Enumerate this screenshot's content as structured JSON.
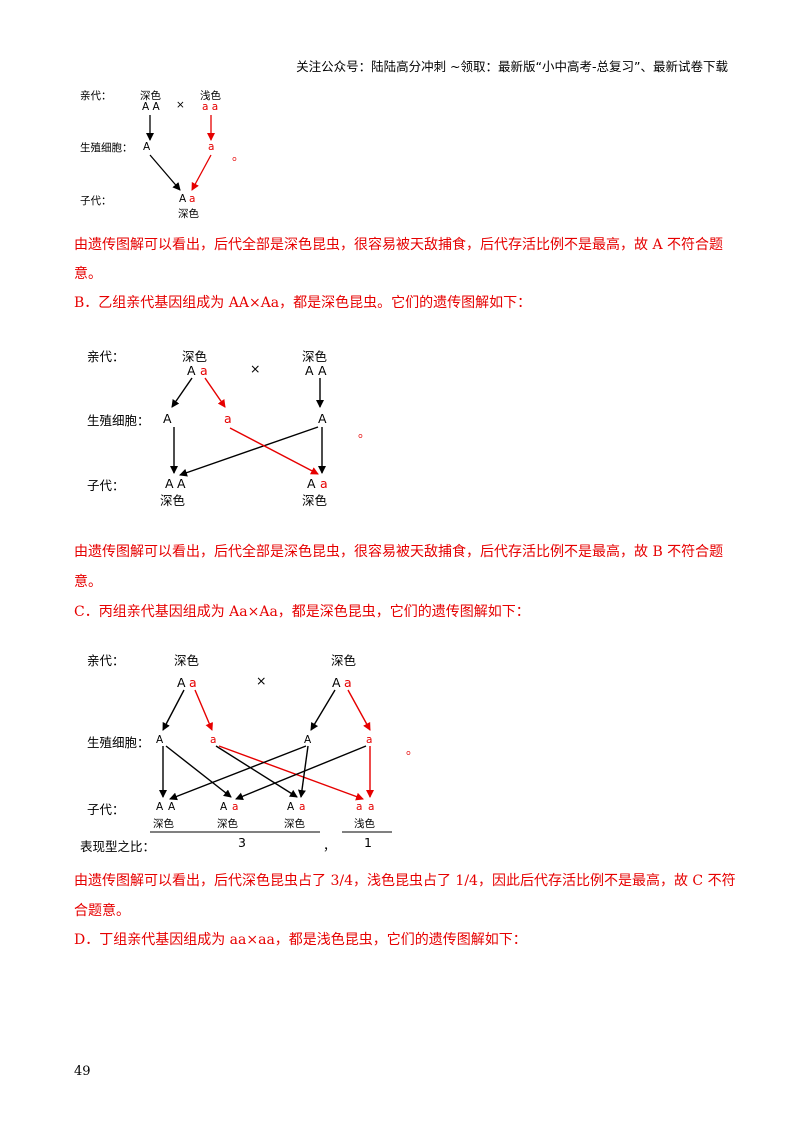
{
  "header": {
    "text": "关注公众号：陆陆高分冲刺  ~领取：最新版“小中高考-总复习”、最新试卷下载"
  },
  "labels": {
    "parent": "亲代：",
    "gamete": "生殖细胞：",
    "offspring": "子代：",
    "ratio": "表现型之比：",
    "dot": "。",
    "cross": "×",
    "comma": "，"
  },
  "colors": {
    "dark": "深色",
    "light": "浅色"
  },
  "genes": {
    "A": "A",
    "a": "a"
  },
  "dia1": {
    "p1": "A A",
    "p2": "a a"
  },
  "dia3": {
    "r1": "3",
    "r2": "1"
  },
  "paragraphs": {
    "a1": "由遗传图解可以看出，后代全部是深色昆虫，很容易被天敌捕食，后代存活比例不是最高，故 A 不符合题",
    "a2": "意。",
    "b_intro": "B．乙组亲代基因组成为 AA×Aa，都是深色昆虫。它们的遗传图解如下：",
    "b1": "由遗传图解可以看出，后代全部是深色昆虫，很容易被天敌捕食，后代存活比例不是最高，故 B 不符合题",
    "b2": "意。",
    "c_intro": "C．丙组亲代基因组成为 Aa×Aa，都是深色昆虫，它们的遗传图解如下：",
    "c1": "由遗传图解可以看出，后代深色昆虫占了 3/4，浅色昆虫占了 1/4，因此后代存活比例不是最高，故 C 不符",
    "c2": "合题意。",
    "d_intro": "D．丁组亲代基因组成为 aa×aa，都是浅色昆虫，它们的遗传图解如下："
  },
  "page_number": "49"
}
